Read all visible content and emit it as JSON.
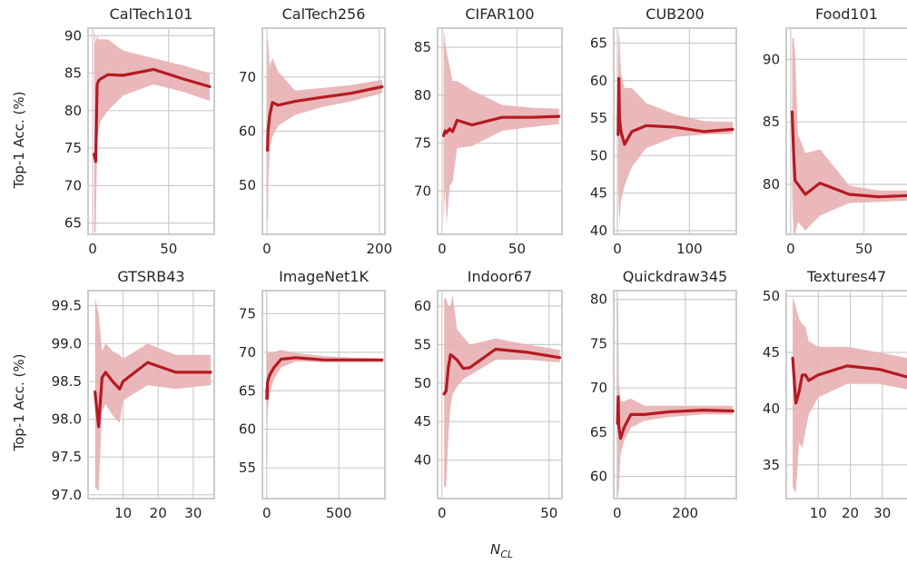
{
  "figure": {
    "ylabel": "Top-1 Acc. (%)",
    "xlabel_main": "N",
    "xlabel_sub": "CL"
  },
  "chart_data": [
    {
      "type": "line",
      "title": "CalTech101",
      "xlim": [
        -3,
        80
      ],
      "ylim": [
        63.5,
        91
      ],
      "xticks": [
        0,
        50
      ],
      "yticks": [
        65,
        70,
        75,
        80,
        85,
        90
      ],
      "x": [
        1,
        2,
        3,
        4,
        5,
        10,
        20,
        40,
        60,
        77
      ],
      "y": [
        74.2,
        73.2,
        83.5,
        84,
        84.2,
        84.8,
        84.7,
        85.5,
        84.2,
        83.2
      ],
      "lower": [
        64,
        63.5,
        76,
        77.5,
        78.5,
        80,
        82,
        83.5,
        82.5,
        81.3
      ],
      "upper": [
        91,
        89,
        90,
        89.5,
        89.5,
        89.5,
        88,
        87,
        86,
        85
      ],
      "color": "#b51a22",
      "band_color": "#e8b0b3"
    },
    {
      "type": "line",
      "title": "CalTech256",
      "xlim": [
        -8,
        210
      ],
      "ylim": [
        41,
        79
      ],
      "xticks": [
        0,
        200
      ],
      "yticks": [
        50,
        60,
        70
      ],
      "x": [
        1,
        2,
        3,
        5,
        10,
        20,
        50,
        100,
        150,
        205
      ],
      "y": [
        56.5,
        60,
        61,
        63,
        65.3,
        64.8,
        65.5,
        66.3,
        67,
        68.2
      ],
      "lower": [
        44,
        44,
        52,
        57,
        59,
        61,
        63,
        64.5,
        65.5,
        67
      ],
      "upper": [
        77,
        77,
        75,
        72,
        73.5,
        71,
        67.5,
        68,
        68.5,
        69.5
      ],
      "color": "#b51a22",
      "band_color": "#e8b0b3"
    },
    {
      "type": "line",
      "title": "CIFAR100",
      "xlim": [
        -3,
        80
      ],
      "ylim": [
        65.5,
        87
      ],
      "xticks": [
        0,
        50
      ],
      "yticks": [
        70,
        75,
        80,
        85
      ],
      "x": [
        1,
        2,
        3,
        5,
        7,
        10,
        20,
        40,
        60,
        78
      ],
      "y": [
        75.8,
        76.3,
        76.1,
        76.5,
        76.2,
        77.4,
        76.9,
        77.7,
        77.7,
        77.8
      ],
      "lower": [
        66.5,
        70.5,
        66.5,
        70.5,
        71,
        74.5,
        74.7,
        76.3,
        76.7,
        77
      ],
      "upper": [
        87,
        85.5,
        84.5,
        83,
        81.5,
        81.5,
        80.5,
        79,
        78.7,
        78.6
      ],
      "color": "#b51a22",
      "band_color": "#e8b0b3"
    },
    {
      "type": "line",
      "title": "CUB200",
      "xlim": [
        -5,
        165
      ],
      "ylim": [
        39.5,
        67
      ],
      "xticks": [
        0,
        100
      ],
      "yticks": [
        40,
        45,
        50,
        55,
        60,
        65
      ],
      "x": [
        1,
        2,
        3,
        5,
        10,
        20,
        40,
        80,
        120,
        160
      ],
      "y": [
        52.8,
        60.3,
        55,
        53.2,
        51.5,
        53.2,
        54,
        53.8,
        53.2,
        53.5
      ],
      "lower": [
        46,
        43,
        41,
        44,
        46,
        48.5,
        51,
        52.5,
        52.8,
        52.9
      ],
      "upper": [
        62,
        66.5,
        66,
        61,
        59,
        59,
        57,
        55.5,
        54.6,
        54.5
      ],
      "color": "#b51a22",
      "band_color": "#e8b0b3"
    },
    {
      "type": "line",
      "title": "Food101",
      "xlim": [
        -3,
        80
      ],
      "ylim": [
        76,
        92.5
      ],
      "xticks": [
        0,
        50
      ],
      "yticks": [
        80,
        85,
        90
      ],
      "x": [
        1,
        2,
        3,
        5,
        10,
        20,
        40,
        60,
        80
      ],
      "y": [
        85.8,
        82.5,
        80.3,
        80,
        79.2,
        80.1,
        79.2,
        79,
        79.1
      ],
      "lower": [
        79,
        76,
        76,
        77,
        76.3,
        77.5,
        78.5,
        78.6,
        78.7
      ],
      "upper": [
        91.7,
        91.7,
        90.5,
        84,
        82.5,
        82.8,
        79.9,
        79.5,
        79.5
      ],
      "color": "#b51a22",
      "band_color": "#e8b0b3"
    },
    {
      "type": "line",
      "title": "GTSRB43",
      "xlim": [
        0,
        36
      ],
      "ylim": [
        96.95,
        99.7
      ],
      "xticks": [
        10,
        20,
        30
      ],
      "yticks": [
        97.0,
        97.5,
        98.0,
        98.5,
        99.0,
        99.5
      ],
      "ytick_labels": [
        "97.0",
        "97.5",
        "98.0",
        "98.5",
        "99.0",
        "99.5"
      ],
      "x": [
        2,
        3,
        4,
        5,
        7,
        9,
        10,
        17,
        25,
        35
      ],
      "y": [
        98.36,
        97.9,
        98.55,
        98.62,
        98.5,
        98.4,
        98.5,
        98.75,
        98.62,
        98.62
      ],
      "lower": [
        97.1,
        97.05,
        98.1,
        98.2,
        98.05,
        97.95,
        98.25,
        98.45,
        98.4,
        98.45
      ],
      "upper": [
        99.6,
        99.4,
        98.9,
        99.0,
        98.9,
        98.85,
        98.8,
        99.0,
        98.85,
        98.85
      ],
      "color": "#b51a22",
      "band_color": "#e8b0b3"
    },
    {
      "type": "line",
      "title": "ImageNet1K",
      "xlim": [
        -30,
        820
      ],
      "ylim": [
        51,
        78
      ],
      "xticks": [
        0,
        500
      ],
      "yticks": [
        55,
        60,
        65,
        70,
        75
      ],
      "x": [
        1,
        2,
        3,
        5,
        10,
        20,
        50,
        100,
        200,
        400,
        600,
        800
      ],
      "y": [
        64,
        65.3,
        64,
        66,
        66.5,
        67,
        68,
        69.1,
        69.3,
        69,
        69,
        69
      ],
      "lower": [
        52,
        61,
        55,
        61,
        63,
        64.5,
        66.5,
        68,
        68.8,
        68.7,
        68.7,
        68.7
      ],
      "upper": [
        76.5,
        76.5,
        72,
        70.5,
        69.8,
        70,
        70,
        70.3,
        69.9,
        69.5,
        69.3,
        69.2
      ],
      "color": "#b51a22",
      "band_color": "#e8b0b3"
    },
    {
      "type": "line",
      "title": "Indoor67",
      "xlim": [
        -2,
        56
      ],
      "ylim": [
        35,
        62
      ],
      "xticks": [
        0,
        50
      ],
      "yticks": [
        40,
        45,
        50,
        55,
        60
      ],
      "x": [
        1,
        2,
        3,
        4,
        5,
        7,
        10,
        13,
        25,
        40,
        55
      ],
      "y": [
        48.6,
        49,
        52,
        53.7,
        53.5,
        53,
        51.9,
        52,
        54.4,
        54,
        53.3
      ],
      "lower": [
        36.5,
        36.5,
        43,
        47,
        48.5,
        49.5,
        50.5,
        51,
        53,
        53,
        52.7
      ],
      "upper": [
        61,
        61,
        60,
        60,
        61.5,
        57,
        56,
        55,
        55.8,
        55,
        54.3
      ],
      "color": "#b51a22",
      "band_color": "#e8b0b3"
    },
    {
      "type": "line",
      "title": "Quickdraw345",
      "xlim": [
        -10,
        350
      ],
      "ylim": [
        57.5,
        81
      ],
      "xticks": [
        0,
        200
      ],
      "yticks": [
        60,
        65,
        70,
        75,
        80
      ],
      "x": [
        1,
        3,
        5,
        10,
        20,
        40,
        80,
        150,
        250,
        340
      ],
      "y": [
        66,
        69,
        65.7,
        64.3,
        65.5,
        67,
        67,
        67.3,
        67.5,
        67.4
      ],
      "lower": [
        57.5,
        58,
        58.5,
        62.5,
        64,
        65.5,
        66.3,
        66.7,
        67,
        67
      ],
      "upper": [
        80.5,
        79.5,
        70.5,
        68.5,
        68.5,
        68.8,
        68,
        68,
        68,
        68
      ],
      "color": "#b51a22",
      "band_color": "#e8b0b3"
    },
    {
      "type": "line",
      "title": "Textures47",
      "xlim": [
        0,
        38
      ],
      "ylim": [
        32,
        50.5
      ],
      "xticks": [
        10,
        20,
        30
      ],
      "yticks": [
        35,
        40,
        45,
        50
      ],
      "x": [
        2,
        3,
        4,
        5,
        6,
        7,
        10,
        19,
        29,
        38
      ],
      "y": [
        44.5,
        40.5,
        41.5,
        43,
        43,
        42.5,
        43,
        43.8,
        43.5,
        42.8
      ],
      "lower": [
        33,
        32.5,
        37,
        36.5,
        38,
        39.5,
        41,
        42.2,
        42.2,
        41.7
      ],
      "upper": [
        50,
        49,
        48,
        47.5,
        47.3,
        46,
        45.5,
        45.5,
        45,
        44.5
      ],
      "color": "#b51a22",
      "band_color": "#e8b0b3"
    }
  ]
}
